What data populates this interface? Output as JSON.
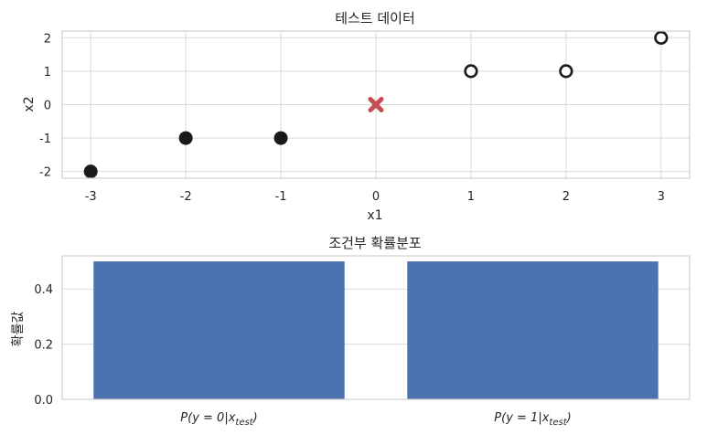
{
  "chart_data": [
    {
      "type": "scatter",
      "title": "테스트 데이터",
      "xlabel": "x1",
      "ylabel": "x2",
      "xlim": [
        -3.3,
        3.3
      ],
      "ylim": [
        -2.2,
        2.2
      ],
      "xticks": [
        -3,
        -2,
        -1,
        0,
        1,
        2,
        3
      ],
      "yticks": [
        -2,
        -1,
        0,
        1,
        2
      ],
      "grid": true,
      "series": [
        {
          "marker": "filled-circle",
          "color": "#1a1a1a",
          "x": [
            -3,
            -2,
            -1
          ],
          "y": [
            -2,
            -1,
            -1
          ]
        },
        {
          "marker": "hollow-circle",
          "color": "#1a1a1a",
          "x": [
            1,
            2,
            3
          ],
          "y": [
            1,
            1,
            2
          ]
        },
        {
          "marker": "x",
          "color": "#c44e52",
          "x": [
            0
          ],
          "y": [
            0
          ]
        }
      ]
    },
    {
      "type": "bar",
      "title": "조건부 확률분포",
      "ylabel": "확률값",
      "categories": [
        "P(y = 0|x_test)",
        "P(y = 1|x_test)"
      ],
      "values": [
        0.5,
        0.5
      ],
      "ylim": [
        0,
        0.52
      ],
      "yticks": [
        "0.0",
        "0.2",
        "0.4"
      ],
      "color": "#4c72b0",
      "grid": true
    }
  ]
}
